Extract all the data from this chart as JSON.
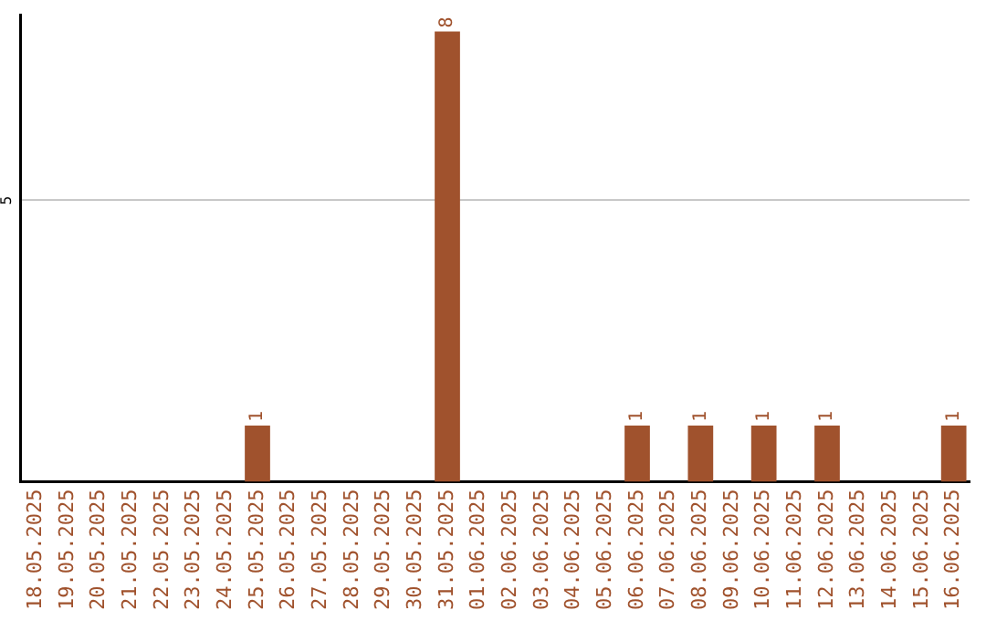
{
  "chart_data": {
    "type": "bar",
    "categories": [
      "18.05.2025",
      "19.05.2025",
      "20.05.2025",
      "21.05.2025",
      "22.05.2025",
      "23.05.2025",
      "24.05.2025",
      "25.05.2025",
      "26.05.2025",
      "27.05.2025",
      "28.05.2025",
      "29.05.2025",
      "30.05.2025",
      "31.05.2025",
      "01.06.2025",
      "02.06.2025",
      "03.06.2025",
      "04.06.2025",
      "05.06.2025",
      "06.06.2025",
      "07.06.2025",
      "08.06.2025",
      "09.06.2025",
      "10.06.2025",
      "11.06.2025",
      "12.06.2025",
      "13.06.2025",
      "14.06.2025",
      "15.06.2025",
      "16.06.2025"
    ],
    "values": [
      0,
      0,
      0,
      0,
      0,
      0,
      0,
      1,
      0,
      0,
      0,
      0,
      0,
      8,
      0,
      0,
      0,
      0,
      0,
      1,
      0,
      1,
      0,
      1,
      0,
      1,
      0,
      0,
      0,
      1
    ],
    "value_labels": [
      null,
      null,
      null,
      null,
      null,
      null,
      null,
      "1",
      null,
      null,
      null,
      null,
      null,
      "8",
      null,
      null,
      null,
      null,
      null,
      "1",
      null,
      "1",
      null,
      "1",
      null,
      "1",
      null,
      null,
      null,
      "1"
    ],
    "color": "#a0522d",
    "ylim": [
      0,
      8.3
    ],
    "yticks": [
      5
    ],
    "grid": "y"
  }
}
